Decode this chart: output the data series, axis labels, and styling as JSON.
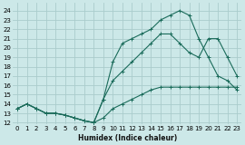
{
  "xlabel": "Humidex (Indice chaleur)",
  "bg_color": "#cce8e8",
  "grid_color": "#aacccc",
  "line_color": "#1a6b5a",
  "xlim": [
    -0.5,
    23.5
  ],
  "ylim": [
    11.8,
    24.8
  ],
  "yticks": [
    12,
    13,
    14,
    15,
    16,
    17,
    18,
    19,
    20,
    21,
    22,
    23,
    24
  ],
  "xticks": [
    0,
    1,
    2,
    3,
    4,
    5,
    6,
    7,
    8,
    9,
    10,
    11,
    12,
    13,
    14,
    15,
    16,
    17,
    18,
    19,
    20,
    21,
    22,
    23
  ],
  "line1_x": [
    0,
    1,
    2,
    3,
    4,
    5,
    6,
    7,
    8,
    9,
    10,
    11,
    12,
    13,
    14,
    15,
    16,
    17,
    18,
    19,
    20,
    21,
    22,
    23
  ],
  "line1_y": [
    13.5,
    14.0,
    13.5,
    13.0,
    13.0,
    12.8,
    12.5,
    12.2,
    12.0,
    12.5,
    13.5,
    14.0,
    14.5,
    15.0,
    15.5,
    15.8,
    15.8,
    15.8,
    15.8,
    15.8,
    15.8,
    15.8,
    15.8,
    15.8
  ],
  "line2_x": [
    0,
    1,
    2,
    3,
    4,
    5,
    6,
    7,
    8,
    9,
    10,
    11,
    12,
    13,
    14,
    15,
    16,
    17,
    18,
    19,
    20,
    21,
    22,
    23
  ],
  "line2_y": [
    13.5,
    14.0,
    13.5,
    13.0,
    13.0,
    12.8,
    12.5,
    12.2,
    12.0,
    14.5,
    16.5,
    17.5,
    18.5,
    19.5,
    20.5,
    21.5,
    21.5,
    20.5,
    19.5,
    19.0,
    21.0,
    21.0,
    19.0,
    17.0
  ],
  "line3_x": [
    0,
    1,
    2,
    3,
    4,
    5,
    6,
    7,
    8,
    9,
    10,
    11,
    12,
    13,
    14,
    15,
    16,
    17,
    18,
    19,
    20,
    21,
    22,
    23
  ],
  "line3_y": [
    13.5,
    14.0,
    13.5,
    13.0,
    13.0,
    12.8,
    12.5,
    12.2,
    12.0,
    14.5,
    18.5,
    20.5,
    21.0,
    21.5,
    22.0,
    23.0,
    23.5,
    24.0,
    23.5,
    21.0,
    19.0,
    17.0,
    16.5,
    15.5
  ]
}
